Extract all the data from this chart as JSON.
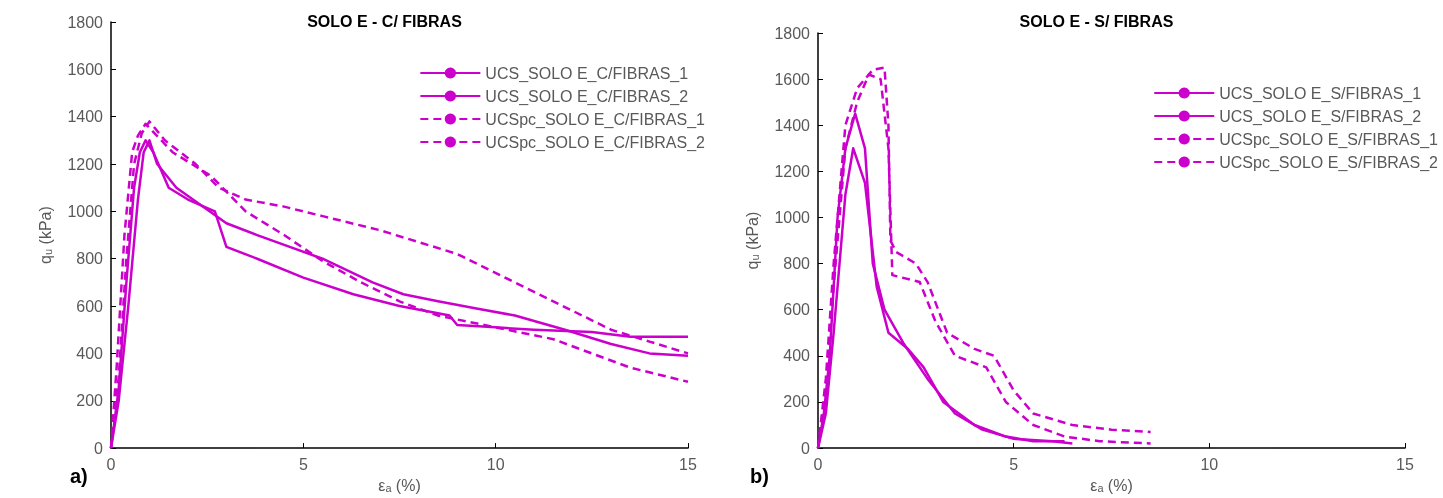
{
  "chart_data": [
    {
      "type": "line",
      "title": "SOLO E - C/ FIBRAS",
      "xlabel": "εₐ (%)",
      "ylabel": "qᵤ (kPa)",
      "annotations": [
        "a)"
      ],
      "xlim": [
        0,
        15
      ],
      "xticks": [
        0,
        5,
        10,
        15
      ],
      "ylim": [
        0,
        1800
      ],
      "yticks": [
        0,
        200,
        400,
        600,
        800,
        1000,
        1200,
        1400,
        1600,
        1800
      ],
      "grid": false,
      "legend": "top right",
      "marker": "none",
      "series": [
        {
          "name": "UCS_SOLO E_C/FIBRAS_1",
          "color": "#cc00cc",
          "line_style": "solid",
          "x": [
            0,
            0.2,
            0.4,
            0.6,
            0.75,
            0.9,
            1.1,
            1.5,
            2,
            2.7,
            3,
            3.8,
            5,
            6.3,
            7.5,
            8.5,
            8.8,
            9,
            10,
            11,
            12.5,
            13.5,
            15
          ],
          "values": [
            0,
            250,
            700,
            1100,
            1250,
            1300,
            1250,
            1100,
            1050,
            1000,
            850,
            800,
            720,
            650,
            600,
            570,
            560,
            520,
            510,
            500,
            490,
            470,
            470
          ]
        },
        {
          "name": "UCS_SOLO E_C/FIBRAS_2",
          "color": "#cc00cc",
          "line_style": "solid",
          "x": [
            0,
            0.2,
            0.45,
            0.7,
            0.85,
            1.0,
            1.2,
            1.7,
            3,
            3.8,
            5.5,
            6.8,
            7.6,
            8.5,
            9.5,
            10.5,
            11.8,
            13,
            14,
            15
          ],
          "values": [
            0,
            200,
            600,
            1050,
            1250,
            1300,
            1200,
            1100,
            950,
            900,
            800,
            700,
            650,
            620,
            590,
            560,
            500,
            440,
            400,
            390
          ]
        },
        {
          "name": "UCSpc_SOLO E_C/FIBRAS_1",
          "color": "#cc00cc",
          "line_style": "dashed",
          "x": [
            0,
            0.2,
            0.4,
            0.6,
            0.8,
            1.0,
            1.4,
            2.2,
            2.8,
            3.5,
            4.5,
            5.5,
            7,
            8,
            9,
            10.5,
            12,
            13,
            14,
            15
          ],
          "values": [
            0,
            300,
            800,
            1200,
            1330,
            1380,
            1300,
            1200,
            1100,
            1050,
            1020,
            980,
            920,
            870,
            820,
            700,
            580,
            500,
            450,
            400
          ]
        },
        {
          "name": "UCSpc_SOLO E_C/FIBRAS_2",
          "color": "#cc00cc",
          "line_style": "dashed",
          "x": [
            0,
            0.15,
            0.35,
            0.55,
            0.7,
            0.9,
            1.6,
            2.6,
            3.5,
            4.5,
            5.5,
            6.5,
            7.5,
            8.5,
            10,
            11.5,
            12.5,
            13.5,
            15
          ],
          "values": [
            0,
            350,
            900,
            1250,
            1320,
            1370,
            1250,
            1150,
            1000,
            900,
            790,
            700,
            620,
            560,
            510,
            460,
            400,
            340,
            280
          ]
        }
      ]
    },
    {
      "type": "line",
      "title": "SOLO E - S/ FIBRAS",
      "xlabel": "εₐ (%)",
      "ylabel": "qᵤ (kPa)",
      "annotations": [
        "b)"
      ],
      "xlim": [
        0,
        15
      ],
      "xticks": [
        0,
        5,
        10,
        15
      ],
      "ylim": [
        0,
        1800
      ],
      "yticks": [
        0,
        200,
        400,
        600,
        800,
        1000,
        1200,
        1400,
        1600,
        1800
      ],
      "grid": false,
      "legend": "top right",
      "marker": "none",
      "series": [
        {
          "name": "UCS_SOLO E_S/FIBRAS_1",
          "color": "#cc00cc",
          "line_style": "solid",
          "x": [
            0,
            0.15,
            0.3,
            0.5,
            0.7,
            0.95,
            1.2,
            1.4,
            1.7,
            2.2,
            2.8,
            3.5,
            4.2,
            5,
            6,
            6.5
          ],
          "values": [
            0,
            150,
            400,
            1000,
            1300,
            1450,
            1300,
            800,
            600,
            450,
            300,
            150,
            80,
            40,
            30,
            20
          ]
        },
        {
          "name": "UCS_SOLO E_S/FIBRAS_2",
          "color": "#cc00cc",
          "line_style": "solid",
          "x": [
            0,
            0.2,
            0.4,
            0.7,
            0.9,
            1.2,
            1.5,
            1.8,
            2.3,
            2.7,
            3.2,
            4,
            4.8,
            5.5,
            6.3
          ],
          "values": [
            0,
            150,
            500,
            1100,
            1300,
            1150,
            700,
            500,
            430,
            350,
            200,
            100,
            50,
            30,
            30
          ]
        },
        {
          "name": "UCSpc_SOLO E_S/FIBRAS_1",
          "color": "#cc00cc",
          "line_style": "dashed",
          "x": [
            0,
            0.2,
            0.4,
            0.7,
            1,
            1.4,
            1.7,
            1.8,
            1.85,
            2.0,
            2.5,
            2.8,
            3.3,
            4,
            4.5,
            5,
            5.5,
            6.5,
            7.5,
            8.5
          ],
          "values": [
            0,
            300,
            800,
            1400,
            1560,
            1640,
            1650,
            1400,
            900,
            850,
            800,
            720,
            500,
            430,
            400,
            250,
            150,
            100,
            80,
            70
          ]
        },
        {
          "name": "UCSpc_SOLO E_S/FIBRAS_2",
          "color": "#cc00cc",
          "line_style": "dashed",
          "x": [
            0,
            0.2,
            0.4,
            0.7,
            1,
            1.3,
            1.6,
            1.8,
            1.9,
            2.6,
            3,
            3.5,
            4.3,
            4.8,
            5.5,
            6.3,
            7.2,
            8.5
          ],
          "values": [
            0,
            250,
            700,
            1300,
            1500,
            1620,
            1600,
            1300,
            750,
            720,
            550,
            400,
            350,
            200,
            100,
            50,
            30,
            20
          ]
        }
      ]
    }
  ]
}
